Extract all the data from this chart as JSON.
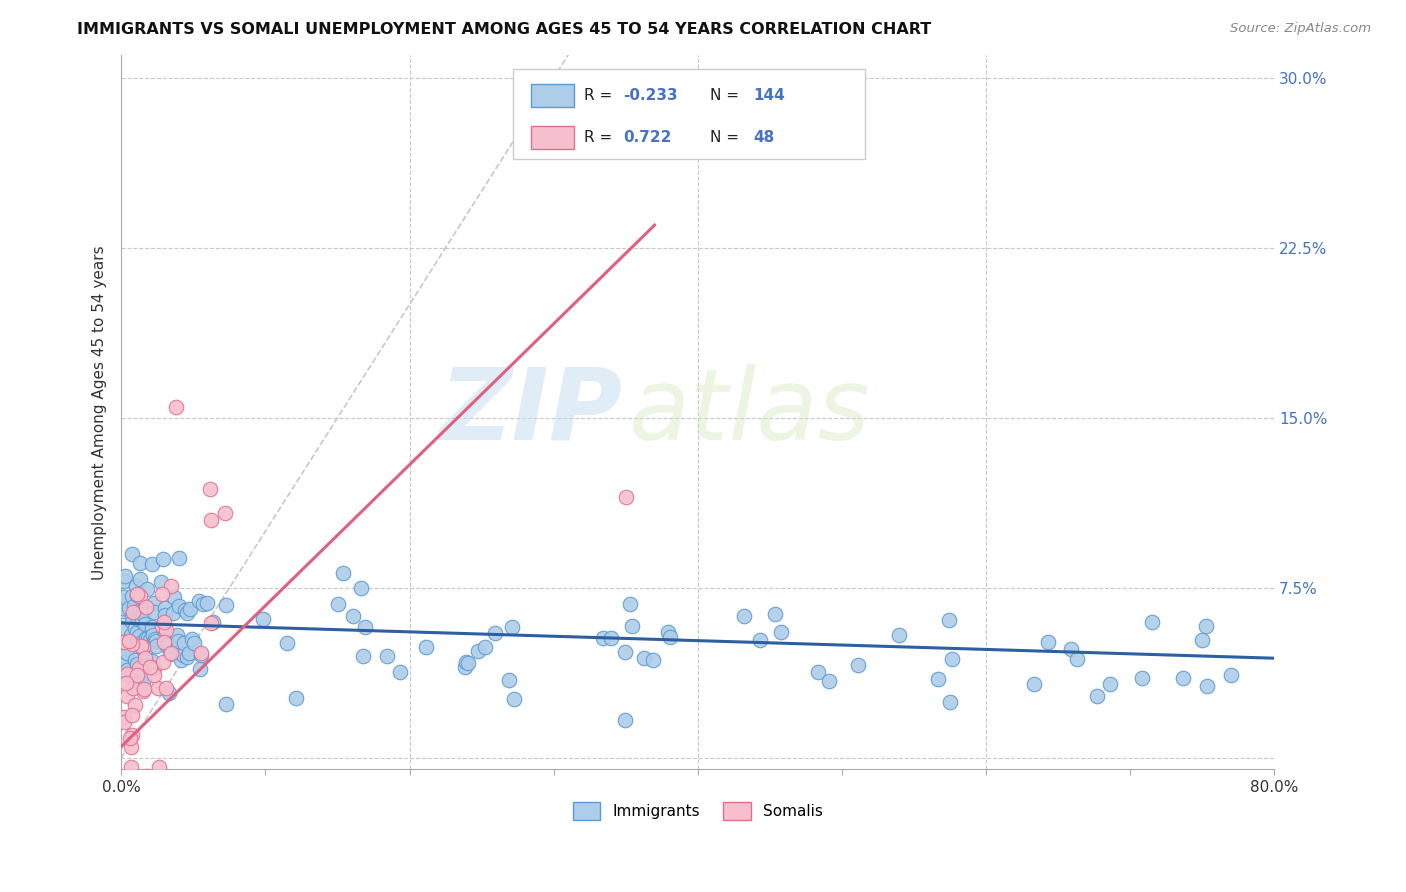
{
  "title": "IMMIGRANTS VS SOMALI UNEMPLOYMENT AMONG AGES 45 TO 54 YEARS CORRELATION CHART",
  "source": "Source: ZipAtlas.com",
  "ylabel": "Unemployment Among Ages 45 to 54 years",
  "xlim": [
    0.0,
    0.8
  ],
  "ylim": [
    -0.005,
    0.31
  ],
  "yticks": [
    0.0,
    0.075,
    0.15,
    0.225,
    0.3
  ],
  "ytick_labels": [
    "",
    "7.5%",
    "15.0%",
    "22.5%",
    "30.0%"
  ],
  "xticks": [
    0.0,
    0.1,
    0.2,
    0.3,
    0.4,
    0.5,
    0.6,
    0.7,
    0.8
  ],
  "xtick_labels": [
    "0.0%",
    "",
    "",
    "",
    "",
    "",
    "",
    "",
    "80.0%"
  ],
  "background_color": "#ffffff",
  "grid_color": "#c8c8c8",
  "watermark_zip": "ZIP",
  "watermark_atlas": "atlas",
  "immigrants_color": "#aecde8",
  "immigrants_edge_color": "#5b9bd5",
  "somalis_color": "#f5bfce",
  "somalis_edge_color": "#e07090",
  "immigrants_line_color": "#2e5fa3",
  "somalis_line_color": "#e06080",
  "diagonal_color": "#c8c8c8",
  "R_immigrants": -0.233,
  "N_immigrants": 144,
  "R_somalis": 0.722,
  "N_somalis": 48,
  "imm_line_x0": 0.0,
  "imm_line_y0": 0.0595,
  "imm_line_x1": 0.8,
  "imm_line_y1": 0.044,
  "som_line_x0": 0.0,
  "som_line_y0": 0.005,
  "som_line_x1": 0.37,
  "som_line_y1": 0.235
}
